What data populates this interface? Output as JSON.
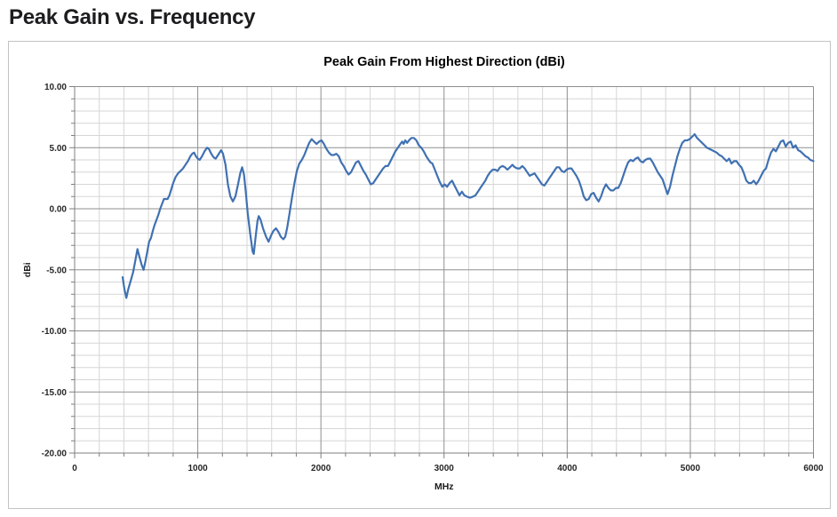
{
  "page": {
    "title": "Peak Gain vs. Frequency"
  },
  "colors": {
    "series_blue": "#4071b2",
    "grid_minor": "#d6d6d6",
    "grid_major": "#8f8f8f",
    "axis": "#7f7f7f",
    "chart_border": "#c3c3c3",
    "text": "#262626"
  },
  "chart_data": {
    "type": "line",
    "title": "Peak Gain From Highest Direction (dBi)",
    "xlabel": "MHz",
    "ylabel": "dBi",
    "xlim": [
      0,
      6000
    ],
    "ylim": [
      -20,
      10
    ],
    "grid": "major+minor",
    "legend": "none",
    "x_major_ticks": [
      0,
      1000,
      2000,
      3000,
      4000,
      5000,
      6000
    ],
    "x_tick_labels": [
      "0",
      "1000",
      "2000",
      "3000",
      "4000",
      "5000",
      "6000"
    ],
    "x_minor_step": 200,
    "y_major_ticks": [
      10,
      5,
      0,
      -5,
      -10,
      -15,
      -20
    ],
    "y_tick_labels": [
      "10.00",
      "5.00",
      "0.00",
      "-5.00",
      "-10.00",
      "-15.00",
      "-20.00"
    ],
    "y_minor_step": 1,
    "series": [
      {
        "name": "Peak Gain From Highest Direction",
        "color": "#4071b2",
        "points": [
          [
            390,
            -5.6
          ],
          [
            405,
            -6.6
          ],
          [
            420,
            -7.3
          ],
          [
            435,
            -6.6
          ],
          [
            455,
            -5.9
          ],
          [
            475,
            -5.2
          ],
          [
            490,
            -4.4
          ],
          [
            510,
            -3.3
          ],
          [
            525,
            -3.9
          ],
          [
            545,
            -4.6
          ],
          [
            560,
            -5.0
          ],
          [
            575,
            -4.3
          ],
          [
            590,
            -3.5
          ],
          [
            605,
            -2.7
          ],
          [
            620,
            -2.4
          ],
          [
            635,
            -1.8
          ],
          [
            650,
            -1.3
          ],
          [
            665,
            -0.9
          ],
          [
            680,
            -0.5
          ],
          [
            695,
            0.0
          ],
          [
            710,
            0.4
          ],
          [
            725,
            0.8
          ],
          [
            740,
            0.8
          ],
          [
            755,
            0.8
          ],
          [
            770,
            1.1
          ],
          [
            785,
            1.6
          ],
          [
            800,
            2.1
          ],
          [
            820,
            2.6
          ],
          [
            840,
            2.9
          ],
          [
            860,
            3.1
          ],
          [
            880,
            3.3
          ],
          [
            900,
            3.6
          ],
          [
            920,
            3.9
          ],
          [
            940,
            4.3
          ],
          [
            955,
            4.5
          ],
          [
            970,
            4.6
          ],
          [
            985,
            4.3
          ],
          [
            1000,
            4.1
          ],
          [
            1015,
            4.0
          ],
          [
            1035,
            4.3
          ],
          [
            1055,
            4.7
          ],
          [
            1075,
            5.0
          ],
          [
            1090,
            4.9
          ],
          [
            1110,
            4.5
          ],
          [
            1130,
            4.2
          ],
          [
            1145,
            4.1
          ],
          [
            1165,
            4.4
          ],
          [
            1190,
            4.8
          ],
          [
            1205,
            4.5
          ],
          [
            1225,
            3.6
          ],
          [
            1245,
            2.0
          ],
          [
            1265,
            1.0
          ],
          [
            1285,
            0.6
          ],
          [
            1305,
            1.0
          ],
          [
            1325,
            1.9
          ],
          [
            1345,
            2.9
          ],
          [
            1360,
            3.4
          ],
          [
            1375,
            2.8
          ],
          [
            1390,
            1.4
          ],
          [
            1405,
            -0.3
          ],
          [
            1425,
            -2.0
          ],
          [
            1445,
            -3.5
          ],
          [
            1455,
            -3.7
          ],
          [
            1470,
            -2.3
          ],
          [
            1485,
            -1.0
          ],
          [
            1495,
            -0.6
          ],
          [
            1510,
            -0.9
          ],
          [
            1530,
            -1.6
          ],
          [
            1555,
            -2.3
          ],
          [
            1575,
            -2.7
          ],
          [
            1595,
            -2.2
          ],
          [
            1615,
            -1.8
          ],
          [
            1635,
            -1.6
          ],
          [
            1655,
            -1.9
          ],
          [
            1675,
            -2.3
          ],
          [
            1695,
            -2.5
          ],
          [
            1710,
            -2.3
          ],
          [
            1725,
            -1.6
          ],
          [
            1745,
            -0.4
          ],
          [
            1765,
            0.9
          ],
          [
            1785,
            2.1
          ],
          [
            1805,
            3.1
          ],
          [
            1825,
            3.7
          ],
          [
            1845,
            4.0
          ],
          [
            1865,
            4.4
          ],
          [
            1885,
            4.9
          ],
          [
            1905,
            5.4
          ],
          [
            1925,
            5.7
          ],
          [
            1945,
            5.5
          ],
          [
            1965,
            5.3
          ],
          [
            1985,
            5.5
          ],
          [
            2005,
            5.6
          ],
          [
            2025,
            5.3
          ],
          [
            2045,
            4.9
          ],
          [
            2065,
            4.6
          ],
          [
            2085,
            4.4
          ],
          [
            2105,
            4.4
          ],
          [
            2125,
            4.5
          ],
          [
            2145,
            4.3
          ],
          [
            2165,
            3.8
          ],
          [
            2185,
            3.5
          ],
          [
            2205,
            3.1
          ],
          [
            2225,
            2.8
          ],
          [
            2245,
            3.0
          ],
          [
            2265,
            3.4
          ],
          [
            2285,
            3.8
          ],
          [
            2305,
            3.9
          ],
          [
            2325,
            3.5
          ],
          [
            2345,
            3.1
          ],
          [
            2365,
            2.8
          ],
          [
            2385,
            2.4
          ],
          [
            2405,
            2.0
          ],
          [
            2425,
            2.1
          ],
          [
            2445,
            2.4
          ],
          [
            2465,
            2.7
          ],
          [
            2485,
            3.0
          ],
          [
            2505,
            3.3
          ],
          [
            2525,
            3.5
          ],
          [
            2545,
            3.5
          ],
          [
            2565,
            3.9
          ],
          [
            2585,
            4.3
          ],
          [
            2605,
            4.7
          ],
          [
            2625,
            5.0
          ],
          [
            2645,
            5.3
          ],
          [
            2660,
            5.5
          ],
          [
            2672,
            5.3
          ],
          [
            2685,
            5.6
          ],
          [
            2700,
            5.4
          ],
          [
            2715,
            5.6
          ],
          [
            2735,
            5.8
          ],
          [
            2755,
            5.8
          ],
          [
            2775,
            5.6
          ],
          [
            2795,
            5.2
          ],
          [
            2815,
            5.0
          ],
          [
            2835,
            4.7
          ],
          [
            2855,
            4.3
          ],
          [
            2875,
            4.0
          ],
          [
            2890,
            3.8
          ],
          [
            2905,
            3.7
          ],
          [
            2925,
            3.2
          ],
          [
            2945,
            2.7
          ],
          [
            2965,
            2.2
          ],
          [
            2985,
            1.8
          ],
          [
            3005,
            2.0
          ],
          [
            3025,
            1.8
          ],
          [
            3045,
            2.1
          ],
          [
            3065,
            2.3
          ],
          [
            3085,
            1.9
          ],
          [
            3105,
            1.5
          ],
          [
            3125,
            1.1
          ],
          [
            3145,
            1.4
          ],
          [
            3165,
            1.1
          ],
          [
            3185,
            1.0
          ],
          [
            3210,
            0.9
          ],
          [
            3235,
            1.0
          ],
          [
            3255,
            1.1
          ],
          [
            3275,
            1.4
          ],
          [
            3295,
            1.7
          ],
          [
            3315,
            2.0
          ],
          [
            3335,
            2.3
          ],
          [
            3355,
            2.7
          ],
          [
            3375,
            3.0
          ],
          [
            3395,
            3.2
          ],
          [
            3415,
            3.2
          ],
          [
            3435,
            3.1
          ],
          [
            3455,
            3.4
          ],
          [
            3475,
            3.5
          ],
          [
            3495,
            3.4
          ],
          [
            3515,
            3.2
          ],
          [
            3535,
            3.4
          ],
          [
            3555,
            3.6
          ],
          [
            3575,
            3.4
          ],
          [
            3595,
            3.3
          ],
          [
            3615,
            3.3
          ],
          [
            3635,
            3.5
          ],
          [
            3655,
            3.3
          ],
          [
            3675,
            3.0
          ],
          [
            3695,
            2.7
          ],
          [
            3715,
            2.8
          ],
          [
            3735,
            2.9
          ],
          [
            3755,
            2.6
          ],
          [
            3775,
            2.3
          ],
          [
            3795,
            2.0
          ],
          [
            3815,
            1.9
          ],
          [
            3835,
            2.2
          ],
          [
            3855,
            2.5
          ],
          [
            3875,
            2.8
          ],
          [
            3895,
            3.1
          ],
          [
            3915,
            3.4
          ],
          [
            3935,
            3.4
          ],
          [
            3955,
            3.1
          ],
          [
            3975,
            3.0
          ],
          [
            3995,
            3.2
          ],
          [
            4015,
            3.3
          ],
          [
            4035,
            3.3
          ],
          [
            4055,
            3.0
          ],
          [
            4075,
            2.7
          ],
          [
            4095,
            2.3
          ],
          [
            4115,
            1.7
          ],
          [
            4135,
            1.0
          ],
          [
            4155,
            0.7
          ],
          [
            4175,
            0.8
          ],
          [
            4195,
            1.2
          ],
          [
            4215,
            1.3
          ],
          [
            4235,
            0.9
          ],
          [
            4255,
            0.6
          ],
          [
            4275,
            1.0
          ],
          [
            4295,
            1.6
          ],
          [
            4315,
            2.0
          ],
          [
            4335,
            1.7
          ],
          [
            4355,
            1.5
          ],
          [
            4375,
            1.5
          ],
          [
            4395,
            1.7
          ],
          [
            4415,
            1.7
          ],
          [
            4435,
            2.1
          ],
          [
            4455,
            2.7
          ],
          [
            4475,
            3.3
          ],
          [
            4495,
            3.8
          ],
          [
            4515,
            4.0
          ],
          [
            4535,
            3.9
          ],
          [
            4555,
            4.1
          ],
          [
            4575,
            4.2
          ],
          [
            4595,
            3.9
          ],
          [
            4615,
            3.8
          ],
          [
            4635,
            4.0
          ],
          [
            4655,
            4.1
          ],
          [
            4675,
            4.1
          ],
          [
            4695,
            3.8
          ],
          [
            4715,
            3.4
          ],
          [
            4735,
            3.0
          ],
          [
            4755,
            2.7
          ],
          [
            4775,
            2.4
          ],
          [
            4795,
            1.8
          ],
          [
            4815,
            1.2
          ],
          [
            4835,
            1.8
          ],
          [
            4855,
            2.7
          ],
          [
            4875,
            3.5
          ],
          [
            4895,
            4.3
          ],
          [
            4915,
            4.9
          ],
          [
            4935,
            5.4
          ],
          [
            4955,
            5.6
          ],
          [
            4975,
            5.6
          ],
          [
            4995,
            5.7
          ],
          [
            5015,
            5.9
          ],
          [
            5035,
            6.1
          ],
          [
            5055,
            5.8
          ],
          [
            5075,
            5.6
          ],
          [
            5095,
            5.4
          ],
          [
            5115,
            5.2
          ],
          [
            5135,
            5.0
          ],
          [
            5155,
            4.9
          ],
          [
            5175,
            4.8
          ],
          [
            5195,
            4.7
          ],
          [
            5215,
            4.6
          ],
          [
            5235,
            4.4
          ],
          [
            5255,
            4.3
          ],
          [
            5275,
            4.1
          ],
          [
            5295,
            3.9
          ],
          [
            5315,
            4.1
          ],
          [
            5335,
            3.7
          ],
          [
            5355,
            3.9
          ],
          [
            5375,
            3.9
          ],
          [
            5395,
            3.6
          ],
          [
            5415,
            3.4
          ],
          [
            5435,
            2.9
          ],
          [
            5455,
            2.3
          ],
          [
            5475,
            2.1
          ],
          [
            5495,
            2.1
          ],
          [
            5515,
            2.3
          ],
          [
            5535,
            2.0
          ],
          [
            5555,
            2.3
          ],
          [
            5575,
            2.7
          ],
          [
            5595,
            3.1
          ],
          [
            5615,
            3.3
          ],
          [
            5635,
            4.0
          ],
          [
            5655,
            4.6
          ],
          [
            5675,
            4.9
          ],
          [
            5695,
            4.7
          ],
          [
            5715,
            5.1
          ],
          [
            5735,
            5.5
          ],
          [
            5755,
            5.6
          ],
          [
            5775,
            5.1
          ],
          [
            5795,
            5.4
          ],
          [
            5815,
            5.5
          ],
          [
            5835,
            5.0
          ],
          [
            5855,
            5.2
          ],
          [
            5875,
            4.8
          ],
          [
            5895,
            4.7
          ],
          [
            5915,
            4.5
          ],
          [
            5935,
            4.3
          ],
          [
            5955,
            4.2
          ],
          [
            5975,
            4.0
          ],
          [
            6000,
            3.9
          ]
        ]
      }
    ]
  }
}
